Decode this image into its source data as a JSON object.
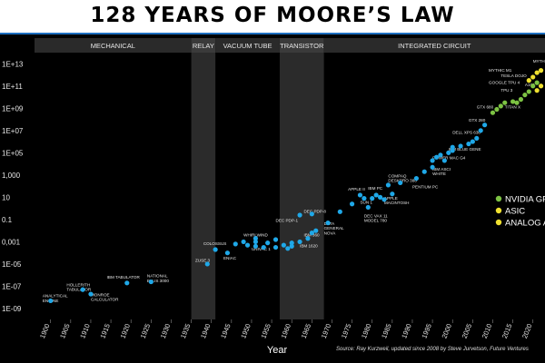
{
  "title": "128 YEARS OF MOORE’S LAW",
  "source": "Source: Ray Kurzweil, updated since 2008 by Steve Jurvetson, Future Ventures",
  "colors": {
    "background": "#000000",
    "era_bar": "#2a2a2a",
    "era_highlight": "#3a3a3a",
    "point_blue": "#1fa8e8",
    "point_green": "#7cc243",
    "point_yellow": "#f0e130",
    "text": "#e6e6e6"
  },
  "chart_data": {
    "type": "scatter",
    "title": "128 YEARS OF MOORE’S LAW",
    "xlabel": "Year",
    "ylabel": "",
    "xlim": [
      1896,
      2023
    ],
    "ylim": [
      -9,
      14
    ],
    "y_scale": "log10",
    "x_ticks": [
      1900,
      1905,
      1910,
      1915,
      1920,
      1925,
      1930,
      1935,
      1940,
      1945,
      1950,
      1955,
      1960,
      1965,
      1970,
      1975,
      1980,
      1985,
      1990,
      1995,
      2000,
      2005,
      2010,
      2015,
      2020
    ],
    "y_ticks": [
      {
        "exp": 13,
        "label": "1E+13"
      },
      {
        "exp": 11,
        "label": "1E+11"
      },
      {
        "exp": 9,
        "label": "1E+09"
      },
      {
        "exp": 7,
        "label": "1E+07"
      },
      {
        "exp": 5,
        "label": "1E+05"
      },
      {
        "exp": 3,
        "label": "1,000"
      },
      {
        "exp": 1,
        "label": "10"
      },
      {
        "exp": -1,
        "label": "0.1"
      },
      {
        "exp": -3,
        "label": "0,001"
      },
      {
        "exp": -5,
        "label": "1E-05"
      },
      {
        "exp": -7,
        "label": "1E-07"
      },
      {
        "exp": -9,
        "label": "1E-09"
      }
    ],
    "eras": [
      {
        "name": "MECHANICAL",
        "start": 1896,
        "end": 1935,
        "highlight": false
      },
      {
        "name": "RELAY",
        "start": 1935,
        "end": 1941,
        "highlight": true
      },
      {
        "name": "VACUUM TUBE",
        "start": 1941,
        "end": 1957,
        "highlight": false
      },
      {
        "name": "TRANSISTOR",
        "start": 1957,
        "end": 1968,
        "highlight": true
      },
      {
        "name": "INTEGRATED CIRCUIT",
        "start": 1968,
        "end": 2023,
        "highlight": false
      }
    ],
    "legend": {
      "placement": "right",
      "items": [
        {
          "label": "NVIDIA GPU",
          "color": "#7cc243"
        },
        {
          "label": "ASIC",
          "color": "#f0e130"
        },
        {
          "label": "ANALOG AI",
          "color": "#f0e130"
        }
      ]
    },
    "points": [
      {
        "x": 1900,
        "y": -8.3,
        "cat": "mech"
      },
      {
        "x": 1908,
        "y": -7.3,
        "cat": "mech"
      },
      {
        "x": 1910,
        "y": -7.7,
        "cat": "mech"
      },
      {
        "x": 1919,
        "y": -6.7,
        "cat": "mech"
      },
      {
        "x": 1925,
        "y": -6.6,
        "cat": "mech"
      },
      {
        "x": 1939,
        "y": -5.0,
        "cat": "relay"
      },
      {
        "x": 1941,
        "y": -3.7,
        "cat": "relay"
      },
      {
        "x": 1944,
        "y": -4.0,
        "cat": "tube"
      },
      {
        "x": 1946,
        "y": -3.2,
        "cat": "tube"
      },
      {
        "x": 1948,
        "y": -3.0,
        "cat": "tube"
      },
      {
        "x": 1949,
        "y": -3.3,
        "cat": "tube"
      },
      {
        "x": 1951,
        "y": -3.4,
        "cat": "tube"
      },
      {
        "x": 1951,
        "y": -3.0,
        "cat": "tube"
      },
      {
        "x": 1951,
        "y": -2.7,
        "cat": "tube"
      },
      {
        "x": 1953,
        "y": -3.5,
        "cat": "tube"
      },
      {
        "x": 1954,
        "y": -3.1,
        "cat": "tube"
      },
      {
        "x": 1956,
        "y": -3.5,
        "cat": "tube"
      },
      {
        "x": 1956,
        "y": -2.8,
        "cat": "tube"
      },
      {
        "x": 1958,
        "y": -3.3,
        "cat": "tr"
      },
      {
        "x": 1959,
        "y": -3.6,
        "cat": "tr"
      },
      {
        "x": 1960,
        "y": -3.4,
        "cat": "tr"
      },
      {
        "x": 1960,
        "y": -3.1,
        "cat": "tr"
      },
      {
        "x": 1962,
        "y": -3.0,
        "cat": "tr"
      },
      {
        "x": 1964,
        "y": -2.7,
        "cat": "tr"
      },
      {
        "x": 1965,
        "y": -2.2,
        "cat": "tr"
      },
      {
        "x": 1966,
        "y": -2.0,
        "cat": "tr"
      },
      {
        "x": 1962,
        "y": -0.6,
        "cat": "tr"
      },
      {
        "x": 1965,
        "y": -0.5,
        "cat": "tr"
      },
      {
        "x": 1969,
        "y": -1.3,
        "cat": "ic"
      },
      {
        "x": 1972,
        "y": -0.3,
        "cat": "ic"
      },
      {
        "x": 1975,
        "y": 0.4,
        "cat": "ic"
      },
      {
        "x": 1977,
        "y": 1.2,
        "cat": "ic"
      },
      {
        "x": 1978,
        "y": 0.9,
        "cat": "ic"
      },
      {
        "x": 1979,
        "y": 0.1,
        "cat": "ic"
      },
      {
        "x": 1980,
        "y": 0.9,
        "cat": "ic"
      },
      {
        "x": 1981,
        "y": 1.2,
        "cat": "ic"
      },
      {
        "x": 1982,
        "y": 1.0,
        "cat": "ic"
      },
      {
        "x": 1983,
        "y": 0.8,
        "cat": "ic"
      },
      {
        "x": 1984,
        "y": 2.1,
        "cat": "ic"
      },
      {
        "x": 1985,
        "y": 1.3,
        "cat": "ic"
      },
      {
        "x": 1987,
        "y": 2.3,
        "cat": "ic"
      },
      {
        "x": 1991,
        "y": 2.7,
        "cat": "ic"
      },
      {
        "x": 1993,
        "y": 3.3,
        "cat": "ic"
      },
      {
        "x": 1995,
        "y": 4.3,
        "cat": "ic"
      },
      {
        "x": 1995,
        "y": 3.7,
        "cat": "ic"
      },
      {
        "x": 1996,
        "y": 4.6,
        "cat": "ic"
      },
      {
        "x": 1997,
        "y": 4.8,
        "cat": "ic"
      },
      {
        "x": 1998,
        "y": 4.3,
        "cat": "ic"
      },
      {
        "x": 1999,
        "y": 5.0,
        "cat": "ic"
      },
      {
        "x": 2000,
        "y": 5.5,
        "cat": "ic"
      },
      {
        "x": 2000,
        "y": 5.2,
        "cat": "ic"
      },
      {
        "x": 2002,
        "y": 5.6,
        "cat": "ic"
      },
      {
        "x": 2004,
        "y": 5.8,
        "cat": "ic"
      },
      {
        "x": 2005,
        "y": 6.0,
        "cat": "ic"
      },
      {
        "x": 2006,
        "y": 6.3,
        "cat": "ic"
      },
      {
        "x": 2007,
        "y": 7.0,
        "cat": "ic"
      },
      {
        "x": 2008,
        "y": 7.5,
        "cat": "ic"
      },
      {
        "x": 2010,
        "y": 8.6,
        "cat": "gpu"
      },
      {
        "x": 2011,
        "y": 8.9,
        "cat": "gpu"
      },
      {
        "x": 2012,
        "y": 9.2,
        "cat": "gpu"
      },
      {
        "x": 2013,
        "y": 9.5,
        "cat": "gpu"
      },
      {
        "x": 2015,
        "y": 9.6,
        "cat": "gpu"
      },
      {
        "x": 2016,
        "y": 9.5,
        "cat": "gpu"
      },
      {
        "x": 2017,
        "y": 9.8,
        "cat": "gpu"
      },
      {
        "x": 2018,
        "y": 10.2,
        "cat": "gpu"
      },
      {
        "x": 2019,
        "y": 10.5,
        "cat": "gpu"
      },
      {
        "x": 2020,
        "y": 11.0,
        "cat": "gpu"
      },
      {
        "x": 2021,
        "y": 11.3,
        "cat": "gpu"
      },
      {
        "x": 2019,
        "y": 11.5,
        "cat": "asic"
      },
      {
        "x": 2020,
        "y": 11.8,
        "cat": "asic"
      },
      {
        "x": 2021,
        "y": 12.2,
        "cat": "asic"
      },
      {
        "x": 2022,
        "y": 12.4,
        "cat": "asic"
      },
      {
        "x": 2022,
        "y": 11.0,
        "cat": "asic"
      },
      {
        "x": 2021,
        "y": 10.6,
        "cat": "asic"
      }
    ],
    "labels": [
      {
        "text": "ANALYTICAL\nENGINE",
        "x": 1898,
        "y": -8.0
      },
      {
        "text": "HOLLERITH\nTABULATOR",
        "x": 1904,
        "y": -7.0
      },
      {
        "text": "MONROE\nCALCULATOR",
        "x": 1910,
        "y": -7.9
      },
      {
        "text": "IBM TABULATOR",
        "x": 1914,
        "y": -6.3
      },
      {
        "text": "NATIONAL\nELLIS 3000",
        "x": 1924,
        "y": -6.2
      },
      {
        "text": "ZUSE 3",
        "x": 1936,
        "y": -4.8
      },
      {
        "text": "COLOSSUS",
        "x": 1938,
        "y": -3.3
      },
      {
        "text": "ENIAC",
        "x": 1943,
        "y": -4.6
      },
      {
        "text": "WHIRLWIND",
        "x": 1948,
        "y": -2.5
      },
      {
        "text": "UNIVAC 1",
        "x": 1950,
        "y": -3.8
      },
      {
        "text": "DEC PDP-1",
        "x": 1956,
        "y": -1.2
      },
      {
        "text": "DEC PDP-8",
        "x": 1963,
        "y": -0.4
      },
      {
        "text": "IBM 360",
        "x": 1963,
        "y": -2.5
      },
      {
        "text": "IBM 1620",
        "x": 1962,
        "y": -3.5
      },
      {
        "text": "DATA\nGENERAL\nNOVA",
        "x": 1968,
        "y": -1.5
      },
      {
        "text": "APPLE II",
        "x": 1974,
        "y": 1.6
      },
      {
        "text": "SUN 1",
        "x": 1977,
        "y": 0.4
      },
      {
        "text": "DEC VAX 11\nMODEL 780",
        "x": 1978,
        "y": -0.8
      },
      {
        "text": "IBM PC",
        "x": 1979,
        "y": 1.7
      },
      {
        "text": "APPLE\nMACINTOSH",
        "x": 1983,
        "y": 0.8
      },
      {
        "text": "COMPAQ\nDESKPRO 386",
        "x": 1984,
        "y": 2.8
      },
      {
        "text": "PENTIUM PC",
        "x": 1990,
        "y": 1.8
      },
      {
        "text": "IBM ASCI\nWHITE",
        "x": 1995,
        "y": 3.4
      },
      {
        "text": "POWER MAC G4",
        "x": 1995,
        "y": 4.4
      },
      {
        "text": "IBM BLUE GENE",
        "x": 1999,
        "y": 5.2
      },
      {
        "text": "DELL XPS 630",
        "x": 2000,
        "y": 6.7
      },
      {
        "text": "GTX 280",
        "x": 2004,
        "y": 7.8
      },
      {
        "text": "GTX 680",
        "x": 2006,
        "y": 9.0
      },
      {
        "text": "TITAN X",
        "x": 2013,
        "y": 9.0
      },
      {
        "text": "TPU 3",
        "x": 2012,
        "y": 10.5
      },
      {
        "text": "GOOGLE TPU 4",
        "x": 2009,
        "y": 11.2
      },
      {
        "text": "TESLA DOJO",
        "x": 2012,
        "y": 11.8
      },
      {
        "text": "MYTHIC M1",
        "x": 2009,
        "y": 12.3
      },
      {
        "text": "MYTHIC",
        "x": 2020,
        "y": 13.1
      },
      {
        "text": "A100",
        "x": 2018,
        "y": 11.0
      }
    ]
  }
}
